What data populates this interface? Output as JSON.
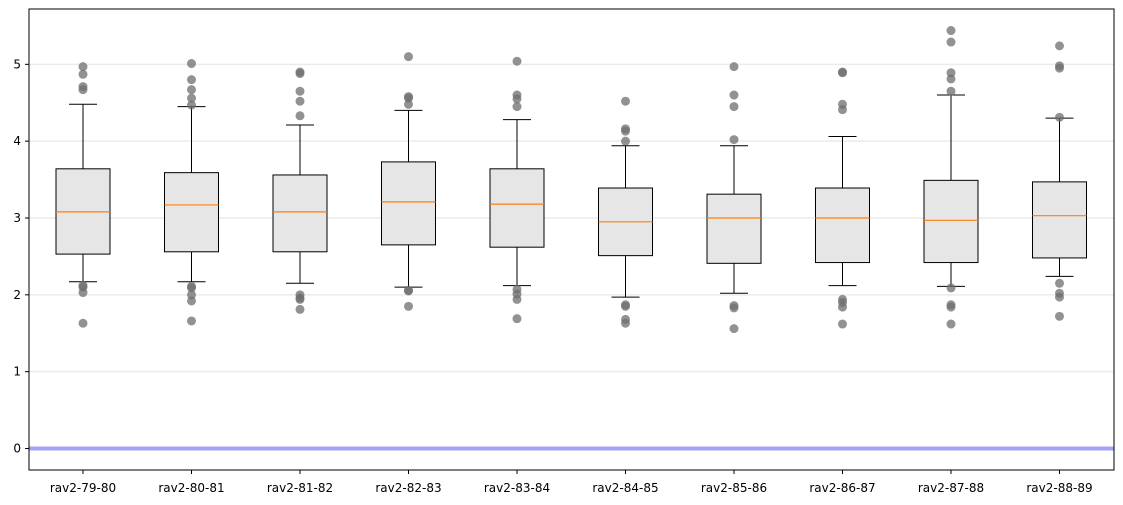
{
  "chart_data": {
    "type": "boxplot",
    "title": "",
    "xlabel": "",
    "ylabel": "",
    "ylim": [
      -0.28,
      5.72
    ],
    "yticks": [
      0,
      1,
      2,
      3,
      4,
      5
    ],
    "ytick_labels": [
      "0",
      "1",
      "2",
      "3",
      "4",
      "5"
    ],
    "grid": "horizontal",
    "reference_line": {
      "y": 0,
      "color": "#a3a3f5"
    },
    "colors": {
      "box_fill": "#e6e6e6",
      "box_edge": "#000000",
      "median": "#ff7f0e",
      "outlier": "#6e6e6e",
      "grid": "#ebebeb"
    },
    "categories": [
      "rav2-79-80",
      "rav2-80-81",
      "rav2-81-82",
      "rav2-82-83",
      "rav2-83-84",
      "rav2-84-85",
      "rav2-85-86",
      "rav2-86-87",
      "rav2-87-88",
      "rav2-88-89"
    ],
    "boxes": [
      {
        "whisker_low": 2.17,
        "q1": 2.53,
        "median": 3.08,
        "q3": 3.64,
        "whisker_high": 4.48,
        "outliers": [
          4.97,
          4.87,
          4.71,
          4.67,
          2.12,
          2.1,
          2.03,
          1.63
        ]
      },
      {
        "whisker_low": 2.17,
        "q1": 2.56,
        "median": 3.17,
        "q3": 3.59,
        "whisker_high": 4.45,
        "outliers": [
          5.01,
          4.8,
          4.67,
          4.56,
          4.47,
          2.11,
          2.09,
          2.0,
          1.92,
          1.66
        ]
      },
      {
        "whisker_low": 2.15,
        "q1": 2.56,
        "median": 3.08,
        "q3": 3.56,
        "whisker_high": 4.21,
        "outliers": [
          4.9,
          4.88,
          4.65,
          4.52,
          4.33,
          2.0,
          1.96,
          1.94,
          1.81
        ]
      },
      {
        "whisker_low": 2.1,
        "q1": 2.65,
        "median": 3.21,
        "q3": 3.73,
        "whisker_high": 4.4,
        "outliers": [
          5.1,
          4.58,
          4.56,
          4.48,
          2.06,
          2.05,
          1.85
        ]
      },
      {
        "whisker_low": 2.12,
        "q1": 2.62,
        "median": 3.18,
        "q3": 3.64,
        "whisker_high": 4.28,
        "outliers": [
          5.04,
          4.6,
          4.55,
          4.45,
          2.07,
          2.01,
          1.94,
          1.69
        ]
      },
      {
        "whisker_low": 1.97,
        "q1": 2.51,
        "median": 2.95,
        "q3": 3.39,
        "whisker_high": 3.94,
        "outliers": [
          4.52,
          4.16,
          4.13,
          4.0,
          1.87,
          1.85,
          1.68,
          1.63
        ]
      },
      {
        "whisker_low": 2.02,
        "q1": 2.41,
        "median": 3.0,
        "q3": 3.31,
        "whisker_high": 3.94,
        "outliers": [
          4.97,
          4.6,
          4.45,
          4.02,
          1.86,
          1.83,
          1.56
        ]
      },
      {
        "whisker_low": 2.12,
        "q1": 2.42,
        "median": 3.0,
        "q3": 3.39,
        "whisker_high": 4.06,
        "outliers": [
          4.9,
          4.89,
          4.48,
          4.41,
          1.94,
          1.9,
          1.84,
          1.62
        ]
      },
      {
        "whisker_low": 2.11,
        "q1": 2.42,
        "median": 2.97,
        "q3": 3.49,
        "whisker_high": 4.6,
        "outliers": [
          5.44,
          5.29,
          4.89,
          4.81,
          4.65,
          2.09,
          1.87,
          1.84,
          1.62
        ]
      },
      {
        "whisker_low": 2.24,
        "q1": 2.48,
        "median": 3.03,
        "q3": 3.47,
        "whisker_high": 4.3,
        "outliers": [
          5.24,
          4.98,
          4.95,
          4.31,
          2.15,
          2.02,
          1.97,
          1.72
        ]
      }
    ]
  }
}
